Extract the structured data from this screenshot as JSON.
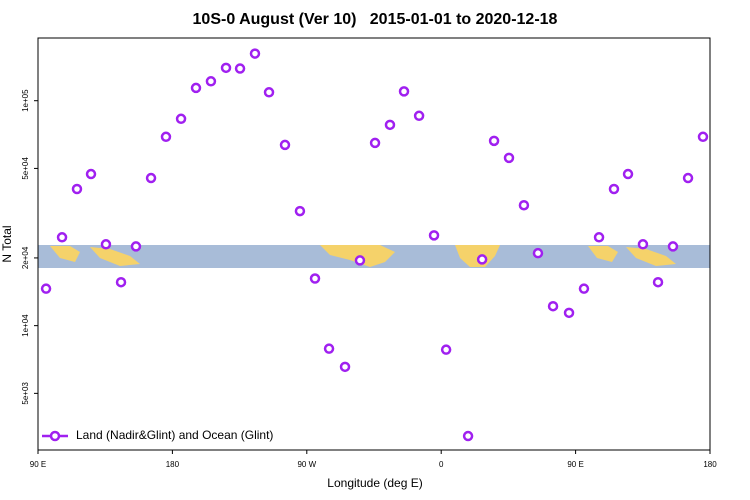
{
  "chart_data": {
    "type": "scatter",
    "title": "10S-0 August (Ver 10)   2015-01-01 to 2020-12-18",
    "x_label": "Longitude (deg E)",
    "y_label": "N Total",
    "xlim": [
      90,
      540
    ],
    "xticks": [
      {
        "value": 90,
        "label": "90 E"
      },
      {
        "value": 180,
        "label": "180"
      },
      {
        "value": 270,
        "label": "90 W"
      },
      {
        "value": 360,
        "label": "0"
      },
      {
        "value": 450,
        "label": "90 E"
      },
      {
        "value": 540,
        "label": "180"
      }
    ],
    "ylim": [
      2800,
      190000
    ],
    "ylog": true,
    "yticks": [
      {
        "value": 5000,
        "label": "5e+03"
      },
      {
        "value": 10000,
        "label": "1e+04"
      },
      {
        "value": 20000,
        "label": "2e+04"
      },
      {
        "value": 50000,
        "label": "5e+04"
      },
      {
        "value": 100000,
        "label": "1e+05"
      }
    ],
    "legend": "bottom left",
    "series": [
      {
        "name": "Land (Nadir&Glint) and Ocean (Glint)",
        "color": "#a020f0",
        "x": [
          95.4,
          106.1,
          116.1,
          125.5,
          135.5,
          145.6,
          155.6,
          165.7,
          175.7,
          185.8,
          195.8,
          205.8,
          215.9,
          225.3,
          235.3,
          244.7,
          255.4,
          265.4,
          275.5,
          284.9,
          295.6,
          305.6,
          315.7,
          325.7,
          335.1,
          345.2,
          355.2,
          363.3,
          378.0,
          387.4,
          395.4,
          405.4,
          415.4,
          424.8,
          434.9,
          445.6,
          455.6,
          465.7,
          475.7,
          485.1,
          495.1,
          505.2,
          515.2,
          525.3,
          535.3
        ],
        "values": [
          14600,
          24700,
          40500,
          47200,
          23000,
          15600,
          22500,
          45300,
          69100,
          83100,
          114000,
          122000,
          140000,
          139000,
          162000,
          109000,
          63600,
          32300,
          16200,
          7900,
          6560,
          19500,
          64900,
          78100,
          110000,
          85700,
          25200,
          7820,
          3230,
          19700,
          66300,
          55700,
          34300,
          21000,
          12200,
          11400,
          14600,
          24700,
          40500,
          47200,
          23000,
          15600,
          22500,
          45300,
          69100
        ]
      }
    ]
  }
}
